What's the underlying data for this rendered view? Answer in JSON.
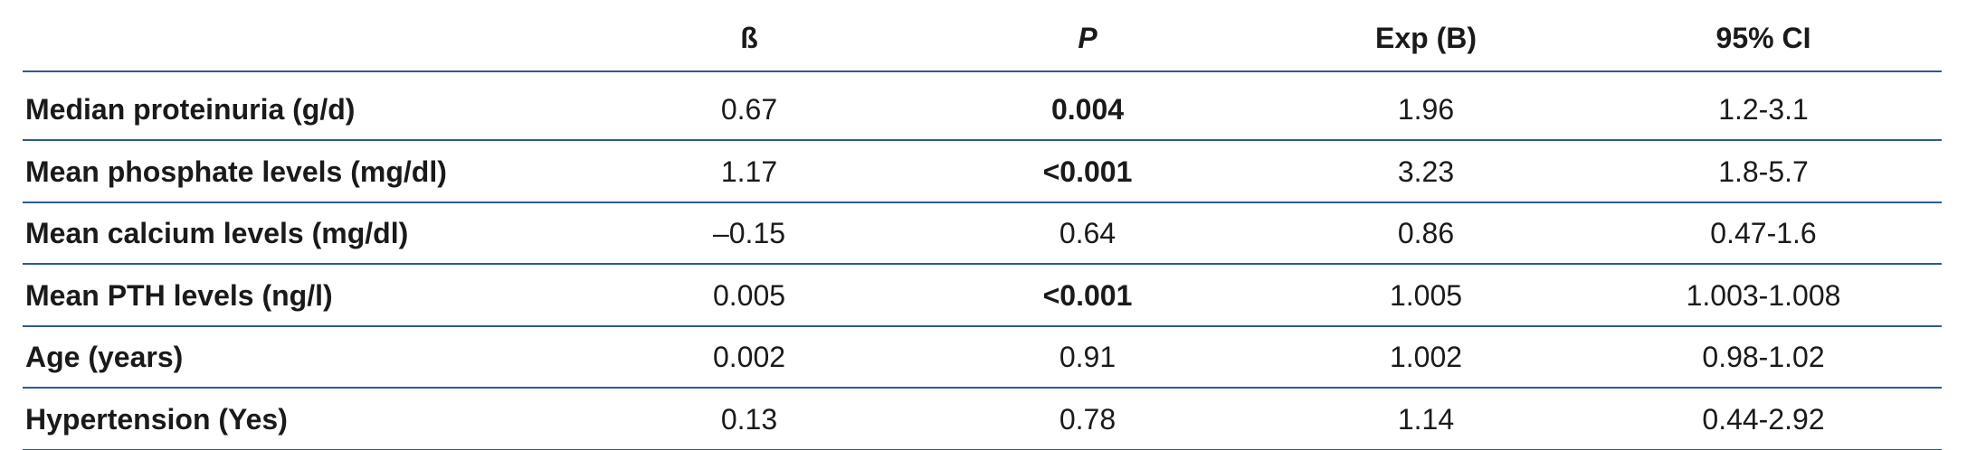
{
  "table": {
    "header": [
      "",
      "ß",
      "P",
      "Exp (B)",
      "95% CI"
    ],
    "rows": [
      {
        "label": "Median proteinuria (g/d)",
        "cells": [
          "0.67",
          "0.004",
          "1.96",
          "1.2-3.1"
        ],
        "bold": [
          1
        ]
      },
      {
        "label": "Mean phosphate levels (mg/dl)",
        "cells": [
          "1.17",
          "<0.001",
          "3.23",
          "1.8-5.7"
        ],
        "bold": [
          1
        ]
      },
      {
        "label": "Mean calcium levels (mg/dl)",
        "cells": [
          "–0.15",
          "0.64",
          "0.86",
          "0.47-1.6"
        ]
      },
      {
        "label": "Mean PTH levels (ng/l)",
        "cells": [
          "0.005",
          "<0.001",
          "1.005",
          "1.003-1.008"
        ],
        "bold": [
          1
        ]
      },
      {
        "label": "Age (years)",
        "cells": [
          "0.002",
          "0.91",
          "1.002",
          "0.98-1.02"
        ]
      },
      {
        "label": "Hypertension (Yes)",
        "cells": [
          "0.13",
          "0.78",
          "1.14",
          "0.44-2.92"
        ]
      }
    ]
  }
}
